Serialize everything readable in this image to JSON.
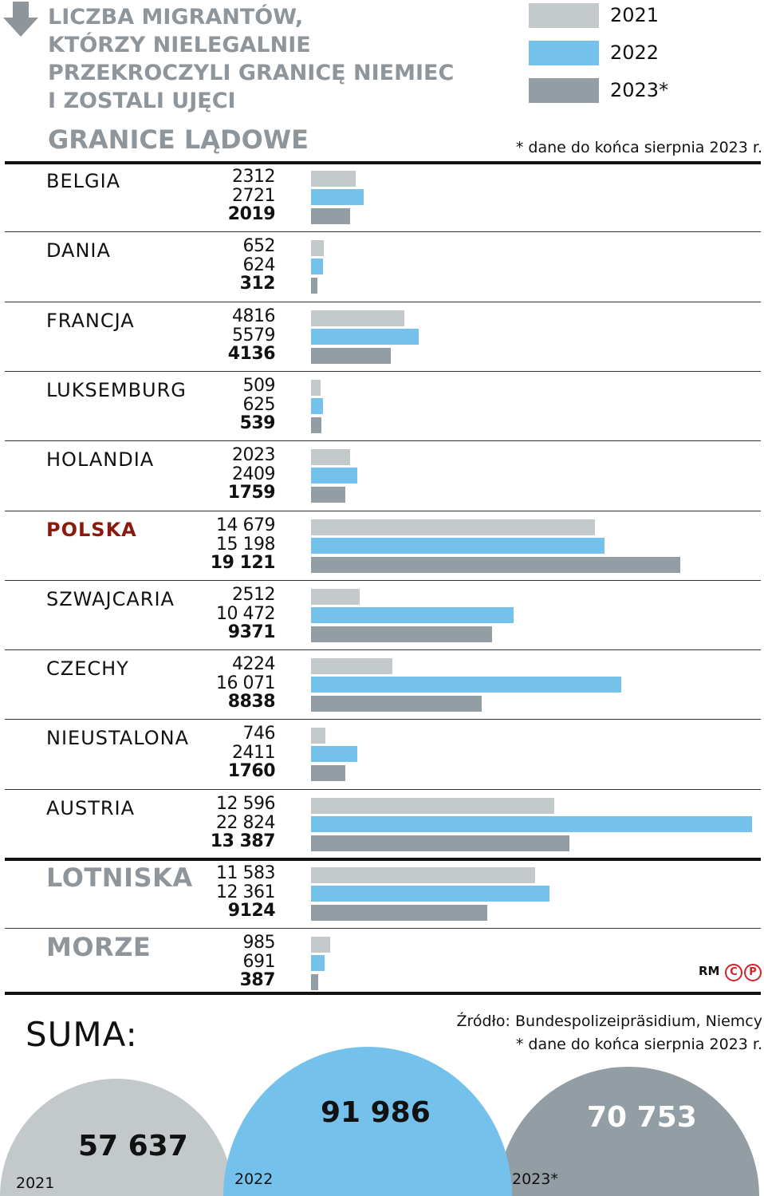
{
  "title": {
    "lines": [
      "LICZBA MIGRANTÓW,",
      "KTÓRZY NIELEGALNIE",
      "PRZEKROCZYLI GRANICĘ NIEMIEC",
      "I ZOSTALI UJĘCI"
    ],
    "arrow_icon": "down-arrow-icon"
  },
  "section_land": "GRANICE LĄDOWE",
  "footnote_top": "* dane do końca sierpnia 2023 r.",
  "legend": [
    {
      "label": "2021",
      "color": "#c3c8cb"
    },
    {
      "label": "2022",
      "color": "#74c2ec"
    },
    {
      "label": "2023*",
      "color": "#939da4"
    }
  ],
  "chart_data": {
    "type": "bar",
    "orientation": "horizontal",
    "title": "LICZBA MIGRANTÓW, KTÓRZY NIELEGALNIE PRZEKROCZYLI GRANICĘ NIEMIEC I ZOSTALI UJĘCI",
    "series_names": [
      "2021",
      "2022",
      "2023*"
    ],
    "series_colors": [
      "#c3c8cb",
      "#74c2ec",
      "#939da4"
    ],
    "xlim": [
      0,
      22824
    ],
    "rows": [
      {
        "label": "BELGIA",
        "group": "land",
        "values": [
          2312,
          2721,
          2019
        ],
        "labels": [
          "2312",
          "2721",
          "2019"
        ]
      },
      {
        "label": "DANIA",
        "group": "land",
        "values": [
          652,
          624,
          312
        ],
        "labels": [
          "652",
          "624",
          "312"
        ]
      },
      {
        "label": "FRANCJA",
        "group": "land",
        "values": [
          4816,
          5579,
          4136
        ],
        "labels": [
          "4816",
          "5579",
          "4136"
        ]
      },
      {
        "label": "LUKSEMBURG",
        "group": "land",
        "values": [
          509,
          625,
          539
        ],
        "labels": [
          "509",
          "625",
          "539"
        ]
      },
      {
        "label": "HOLANDIA",
        "group": "land",
        "values": [
          2023,
          2409,
          1759
        ],
        "labels": [
          "2023",
          "2409",
          "1759"
        ]
      },
      {
        "label": "POLSKA",
        "group": "land",
        "highlight": true,
        "values": [
          14679,
          15198,
          19121
        ],
        "labels": [
          "14 679",
          "15 198",
          "19 121"
        ]
      },
      {
        "label": "SZWAJCARIA",
        "group": "land",
        "values": [
          2512,
          10472,
          9371
        ],
        "labels": [
          "2512",
          "10 472",
          "9371"
        ]
      },
      {
        "label": "CZECHY",
        "group": "land",
        "values": [
          4224,
          16071,
          8838
        ],
        "labels": [
          "4224",
          "16 071",
          "8838"
        ]
      },
      {
        "label": "NIEUSTALONA",
        "group": "land",
        "values": [
          746,
          2411,
          1760
        ],
        "labels": [
          "746",
          "2411",
          "1760"
        ]
      },
      {
        "label": "AUSTRIA",
        "group": "land",
        "values": [
          12596,
          22824,
          13387
        ],
        "labels": [
          "12 596",
          "22 824",
          "13 387"
        ]
      },
      {
        "label": "LOTNISKA",
        "group": "section",
        "values": [
          11583,
          12361,
          9124
        ],
        "labels": [
          "11 583",
          "12 361",
          "9124"
        ]
      },
      {
        "label": "MORZE",
        "group": "section",
        "values": [
          985,
          691,
          387
        ],
        "labels": [
          "985",
          "691",
          "387"
        ]
      }
    ]
  },
  "credit": {
    "initials": "RM",
    "logo_c": "C",
    "logo_p": "P"
  },
  "summary": {
    "label": "SUMA:",
    "source": "Źródło: Bundespolizeipräsidium, Niemcy",
    "footnote": "* dane do końca sierpnia 2023 r.",
    "totals": [
      {
        "year": "2021",
        "value": 57637,
        "value_label": "57 637",
        "color": "#c3c8cb"
      },
      {
        "year": "2022",
        "value": 91986,
        "value_label": "91 986",
        "color": "#74c2ec"
      },
      {
        "year": "2023*",
        "value": 70753,
        "value_label": "70 753",
        "color": "#939da4"
      }
    ]
  }
}
